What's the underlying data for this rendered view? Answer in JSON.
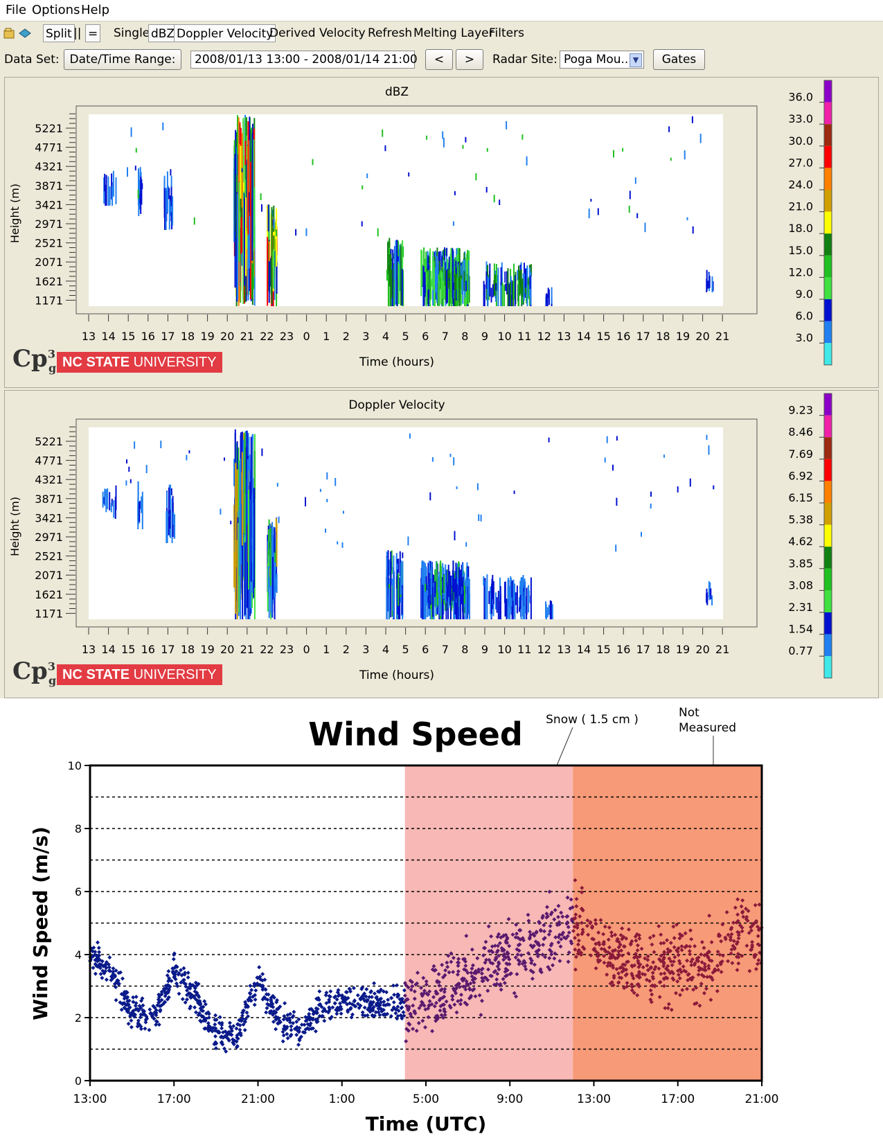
{
  "menu": {
    "items": [
      "File",
      "Options",
      "Help"
    ]
  },
  "toolbar": {
    "split": "Split",
    "pipes": "||",
    "equals": "=",
    "single": "Single",
    "dbz": "dBZ",
    "doppler": "Doppler Velocity",
    "derived": "Derived Velocity",
    "refresh": "Refresh",
    "melting": "Melting Layer",
    "filters": "Filters"
  },
  "dataset": {
    "label": "Data Set:",
    "daterange_button": "Date/Time Range:",
    "daterange_value": "2008/01/13 13:00 - 2008/01/14 21:00",
    "prev": "<",
    "next": ">",
    "radar_label": "Radar Site:",
    "radar_value": "Poga Mou...",
    "gates": "Gates"
  },
  "panels": [
    {
      "title": "dBZ",
      "ylabel": "Height (m)",
      "xlabel": "Time (hours)",
      "yticks": [
        "5221",
        "4771",
        "4321",
        "3871",
        "3421",
        "2971",
        "2521",
        "2071",
        "1621",
        "1171"
      ],
      "colorbar_labels": [
        "36.0",
        "33.0",
        "30.0",
        "27.0",
        "24.0",
        "21.0",
        "18.0",
        "15.0",
        "12.0",
        "9.0",
        "6.0",
        "3.0"
      ]
    },
    {
      "title": "Doppler Velocity",
      "ylabel": "Height (m)",
      "xlabel": "Time (hours)",
      "yticks": [
        "5221",
        "4771",
        "4321",
        "3871",
        "3421",
        "2971",
        "2521",
        "2071",
        "1621",
        "1171"
      ],
      "colorbar_labels": [
        "9.23",
        "8.46",
        "7.69",
        "6.92",
        "6.15",
        "5.38",
        "4.62",
        "3.85",
        "3.08",
        "2.31",
        "1.54",
        "0.77"
      ]
    }
  ],
  "xticks": [
    "13",
    "14",
    "15",
    "16",
    "17",
    "18",
    "19",
    "20",
    "21",
    "22",
    "23",
    "0",
    "1",
    "2",
    "3",
    "4",
    "5",
    "6",
    "7",
    "8",
    "9",
    "10",
    "11",
    "12",
    "13",
    "14",
    "15",
    "16",
    "17",
    "18",
    "19",
    "20",
    "21"
  ],
  "colorbar_colors": [
    "#8b00c8",
    "#f020a8",
    "#9c2a10",
    "#ff0000",
    "#ff8000",
    "#d0a000",
    "#ffff00",
    "#108010",
    "#20c020",
    "#40e040",
    "#0010d0",
    "#2080f0",
    "#40e8e8"
  ],
  "logo": {
    "mark": "Cp",
    "super": "3",
    "sub": "g",
    "ncsu_bold": "NC STATE",
    "ncsu_rest": " UNIVERSITY"
  },
  "chart_data": {
    "type": "scatter",
    "title": "Wind Speed",
    "xlabel": "Time (UTC)",
    "ylabel": "Wind Speed (m/s)",
    "ylim": [
      0,
      10
    ],
    "yticks": [
      "0",
      "2",
      "4",
      "6",
      "8",
      "10"
    ],
    "xticks": [
      "13:00",
      "17:00",
      "21:00",
      "1:00",
      "5:00",
      "9:00",
      "13:00",
      "17:00",
      "21:00"
    ],
    "annotations": [
      "Snow ( 1.5 cm )",
      "Not Measured"
    ],
    "regions": [
      {
        "label": "Snow ( 1.5 cm )",
        "from_hour": 15,
        "to_hour": 23,
        "color": "#f7b8b6"
      },
      {
        "label": "Not Measured",
        "from_hour": 23,
        "to_hour": 32,
        "color": "#f79a78"
      }
    ],
    "series": [
      {
        "color": "#0a1a8a",
        "from_hour": 0,
        "to_hour": 15,
        "trend": [
          [
            0,
            4.0
          ],
          [
            1,
            3.4
          ],
          [
            2,
            2.2
          ],
          [
            3,
            1.9
          ],
          [
            4,
            3.5
          ],
          [
            5,
            2.6
          ],
          [
            6,
            1.5
          ],
          [
            7,
            1.4
          ],
          [
            8,
            3.2
          ],
          [
            9,
            2.0
          ],
          [
            10,
            1.5
          ],
          [
            11,
            2.3
          ],
          [
            12,
            2.6
          ],
          [
            13,
            2.5
          ],
          [
            15,
            2.4
          ]
        ]
      },
      {
        "color": "#5a1a6e",
        "from_hour": 15,
        "to_hour": 23,
        "trend": [
          [
            15,
            2.3
          ],
          [
            16,
            2.4
          ],
          [
            17,
            2.9
          ],
          [
            18,
            3.3
          ],
          [
            19,
            3.5
          ],
          [
            20,
            4.0
          ],
          [
            21,
            4.3
          ],
          [
            22,
            4.7
          ],
          [
            23,
            5.0
          ]
        ]
      },
      {
        "color": "#8a1a3a",
        "from_hour": 23,
        "to_hour": 32,
        "trend": [
          [
            23,
            5.0
          ],
          [
            24,
            4.3
          ],
          [
            25,
            3.9
          ],
          [
            26,
            3.7
          ],
          [
            27,
            3.6
          ],
          [
            28,
            3.7
          ],
          [
            29,
            3.6
          ],
          [
            30,
            4.0
          ],
          [
            31,
            4.8
          ],
          [
            32,
            4.5
          ]
        ]
      }
    ]
  }
}
